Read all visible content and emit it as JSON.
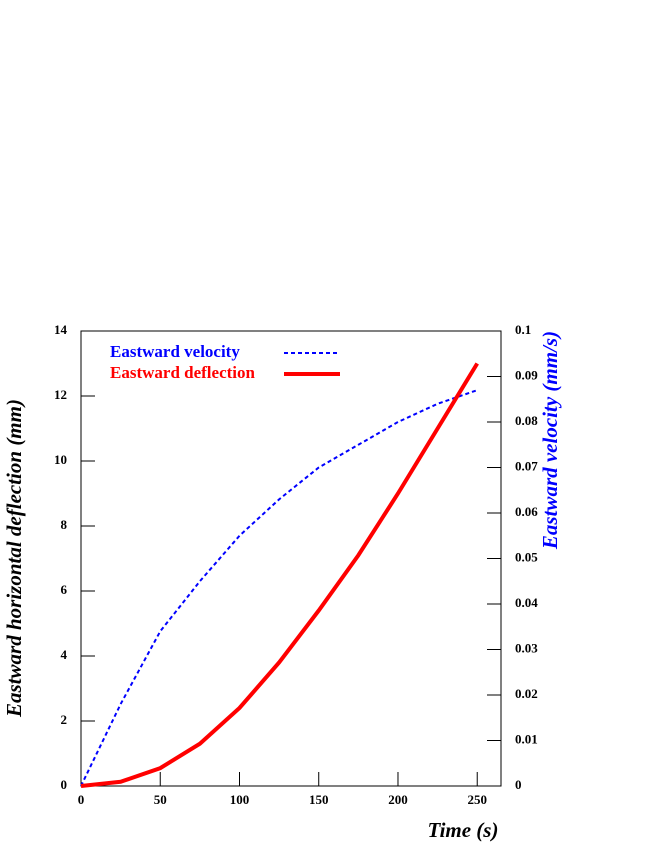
{
  "chart_data": {
    "type": "line",
    "xlabel": "Time (s)",
    "ylabel": "Eastward horizontal deflection (mm)",
    "y2label": "Eastward velocity (mm/s)",
    "y2label_color": "#0000ff",
    "x": [
      0,
      25,
      50,
      75,
      100,
      125,
      150,
      175,
      200,
      225,
      250
    ],
    "series": [
      {
        "name": "Eastward velocity",
        "color": "#0000ff",
        "axis": "y2",
        "line_style": "dashed",
        "values": [
          0,
          0.018,
          0.034,
          0.045,
          0.055,
          0.063,
          0.07,
          0.075,
          0.08,
          0.084,
          0.087
        ]
      },
      {
        "name": "Eastward deflection",
        "color": "#ff0000",
        "line_style": "solid",
        "values": [
          0,
          0.13,
          0.55,
          1.3,
          2.4,
          3.8,
          5.4,
          7.1,
          9.0,
          11.0,
          13.0
        ]
      }
    ],
    "xlim": [
      0,
      265
    ],
    "xticks": [
      0,
      50,
      100,
      150,
      200,
      250
    ],
    "ylim": [
      0,
      14
    ],
    "yticks": [
      0,
      2,
      4,
      6,
      8,
      10,
      12,
      14
    ],
    "y2lim": [
      0,
      0.1
    ],
    "y2ticks": [
      0,
      0.01,
      0.02,
      0.03,
      0.04,
      0.05,
      0.06,
      0.07,
      0.08,
      0.09,
      0.1
    ],
    "legend": "upper left"
  }
}
